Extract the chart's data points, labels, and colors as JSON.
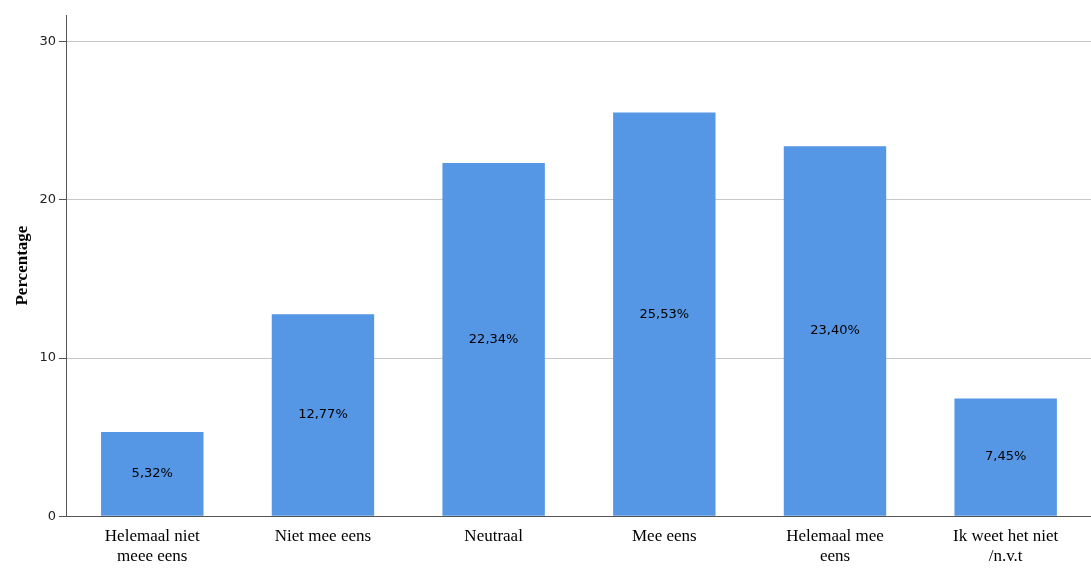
{
  "chart_data": {
    "type": "bar",
    "ylabel": "Percentage",
    "categories": [
      "Helemaal niet meee eens",
      "Niet mee eens",
      "Neutraal",
      "Mee eens",
      "Helemaal mee eens",
      "Ik weet het niet /n.v.t"
    ],
    "values": [
      5.32,
      12.77,
      22.34,
      25.53,
      23.4,
      7.45
    ],
    "value_labels": [
      "5,32%",
      "12,77%",
      "22,34%",
      "25,53%",
      "23,40%",
      "7,45%"
    ],
    "color": "#5596e5",
    "ylim": [
      0,
      31.7
    ],
    "yticks": [
      0,
      10,
      20,
      30
    ],
    "grid": "y",
    "legend": false
  }
}
